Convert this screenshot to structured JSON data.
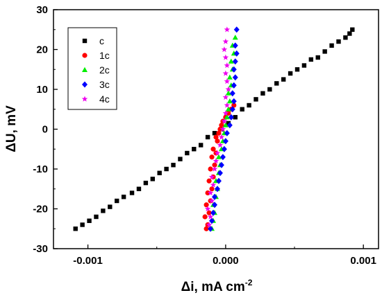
{
  "chart_data": {
    "type": "scatter",
    "title": "",
    "xlabel": "Δi, mA cm",
    "xlabel_superscript": "-2",
    "ylabel": "ΔU, mV",
    "xlim": [
      -0.00125,
      0.00111
    ],
    "ylim": [
      -30,
      30
    ],
    "xticks": [
      -0.001,
      0.0,
      0.001
    ],
    "xtick_labels": [
      "-0.001",
      "0.000",
      "0.001"
    ],
    "yticks": [
      -30,
      -20,
      -10,
      0,
      10,
      20,
      30
    ],
    "ytick_labels": [
      "-30",
      "-20",
      "-10",
      "0",
      "10",
      "20",
      "30"
    ],
    "legend_position": "top-left",
    "grid": false,
    "series": [
      {
        "name": "c",
        "color": "#000000",
        "marker": "square",
        "x": [
          -0.00109,
          -0.00104,
          -0.00099,
          -0.00094,
          -0.00089,
          -0.00084,
          -0.00079,
          -0.00074,
          -0.00068,
          -0.00063,
          -0.00058,
          -0.00053,
          -0.00048,
          -0.00043,
          -0.00038,
          -0.00033,
          -0.00028,
          -0.00023,
          -0.00018,
          -0.00013,
          -8e-05,
          -3e-05,
          2e-05,
          7e-05,
          0.00012,
          0.00017,
          0.00022,
          0.00027,
          0.00032,
          0.00037,
          0.00042,
          0.00047,
          0.00052,
          0.00057,
          0.00062,
          0.00067,
          0.00072,
          0.00077,
          0.00082,
          0.00087,
          0.0009,
          0.00092
        ],
        "y": [
          -25,
          -24,
          -23,
          -22,
          -20.5,
          -19.5,
          -18,
          -17,
          -16,
          -15,
          -13.5,
          -12.5,
          -11,
          -10,
          -9,
          -7.5,
          -6,
          -5,
          -4,
          -2,
          -1,
          0,
          1.5,
          3,
          5,
          6,
          7.5,
          9,
          10,
          11.5,
          12.5,
          14,
          15,
          16,
          17.5,
          18,
          19.5,
          21,
          22,
          23,
          24,
          25
        ]
      },
      {
        "name": "1c",
        "color": "#ff0000",
        "marker": "circle",
        "x": [
          -0.00014,
          -0.00013,
          -0.00015,
          -0.00012,
          -0.00014,
          -0.00011,
          -0.00013,
          -0.0001,
          -0.00012,
          -9e-05,
          -0.00011,
          -8e-05,
          -0.0001,
          -7e-05,
          -9e-05,
          -6e-05,
          -7e-05,
          -5e-05,
          -4e-05,
          -3e-05,
          -2e-05,
          0.0,
          2e-05,
          4e-05,
          6e-05
        ],
        "y": [
          -25,
          -24,
          -22,
          -21,
          -19,
          -18,
          -16,
          -15,
          -13,
          -12,
          -10,
          -9,
          -7,
          -6,
          -5,
          -3,
          -2,
          -1,
          0,
          1,
          2,
          3,
          4,
          5,
          6
        ]
      },
      {
        "name": "2c",
        "color": "#00ee00",
        "marker": "triangle",
        "x": [
          -0.0001,
          -9e-05,
          -8e-05,
          -9e-05,
          -7e-05,
          -6e-05,
          -7e-05,
          -5e-05,
          -4e-05,
          -5e-05,
          -3e-05,
          -2e-05,
          -1e-05,
          0.0,
          1e-05,
          2e-05,
          3e-05,
          2e-05,
          4e-05,
          3e-05,
          5e-05,
          4e-05,
          6e-05,
          5e-05,
          7e-05
        ],
        "y": [
          -25,
          -23,
          -21,
          -19,
          -17,
          -15,
          -13,
          -11,
          -9,
          -7,
          -5,
          -3,
          -1,
          1,
          3,
          5,
          7,
          9,
          11,
          13,
          15,
          17,
          19,
          21,
          23
        ]
      },
      {
        "name": "3c",
        "color": "#0000ff",
        "marker": "diamond",
        "x": [
          -0.00011,
          -0.0001,
          -9e-05,
          -8e-05,
          -8e-05,
          -6e-05,
          -5e-05,
          -4e-05,
          -3e-05,
          -2e-05,
          -1e-05,
          0.0,
          1e-05,
          3e-05,
          4e-05,
          5e-05,
          6e-05,
          5e-05,
          6e-05,
          7e-05,
          6e-05,
          7e-05,
          8e-05,
          7e-05,
          8e-05
        ],
        "y": [
          -25,
          -23,
          -21,
          -19,
          -17,
          -15,
          -13,
          -11,
          -9,
          -7,
          -5,
          -3,
          -1,
          1,
          3,
          5,
          7,
          9,
          11,
          13,
          15,
          17,
          19,
          21,
          25
        ]
      },
      {
        "name": "4c",
        "color": "#ee00ee",
        "marker": "star",
        "x": [
          -0.00012,
          -0.00011,
          -0.00013,
          -0.0001,
          -0.00011,
          -9e-05,
          -0.0001,
          -8e-05,
          -7e-05,
          -6e-05,
          -4e-05,
          -3e-05,
          -2e-05,
          -1e-05,
          0.0,
          1e-05,
          0.0,
          2e-05,
          1e-05,
          0.0,
          1e-05,
          0.0,
          -1e-05,
          0.0,
          1e-05
        ],
        "y": [
          -24,
          -22,
          -20,
          -18,
          -16,
          -14,
          -12,
          -10,
          -8,
          -6,
          -4,
          -2,
          0,
          2,
          4,
          6,
          8,
          10,
          12,
          14,
          16,
          18,
          20,
          22,
          25
        ]
      }
    ]
  }
}
